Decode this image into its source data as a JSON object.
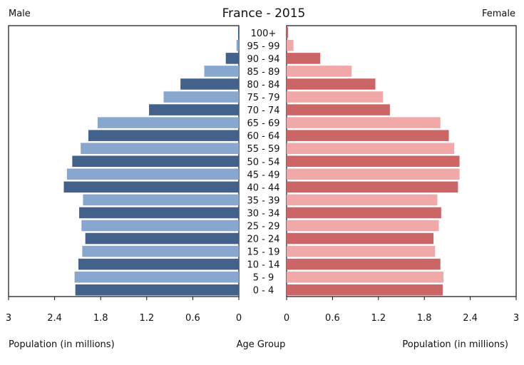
{
  "chart_data": {
    "type": "bar",
    "orientation": "horizontal",
    "title": "France - 2015",
    "left_label": "Male",
    "right_label": "Female",
    "xlabel_left": "Population (in millions)",
    "xlabel_center": "Age Group",
    "xlabel_right": "Population (in millions)",
    "xlim": [
      0,
      3
    ],
    "ticks_left": [
      "3",
      "2.4",
      "1.8",
      "1.2",
      "0.6",
      "0"
    ],
    "ticks_right": [
      "0",
      "0.6",
      "1.2",
      "1.8",
      "2.4",
      "3"
    ],
    "tick_values": [
      0,
      0.6,
      1.2,
      1.8,
      2.4,
      3
    ],
    "categories": [
      "100+",
      "95 - 99",
      "90 - 94",
      "85 - 89",
      "80 - 84",
      "75 - 79",
      "70 - 74",
      "65 - 69",
      "60 - 64",
      "55 - 59",
      "50 - 54",
      "45 - 49",
      "40 - 44",
      "35 - 39",
      "30 - 34",
      "25 - 29",
      "20 - 24",
      "15 - 19",
      "10 - 14",
      "5 - 9",
      "0 - 4"
    ],
    "series": [
      {
        "name": "Male",
        "values": [
          0.01,
          0.03,
          0.17,
          0.45,
          0.76,
          0.98,
          1.17,
          1.84,
          1.96,
          2.06,
          2.17,
          2.24,
          2.28,
          2.03,
          2.08,
          2.05,
          2.0,
          2.04,
          2.09,
          2.14,
          2.13
        ],
        "colors": [
          "#42628b",
          "#87a7cf"
        ]
      },
      {
        "name": "Female",
        "values": [
          0.02,
          0.09,
          0.44,
          0.85,
          1.16,
          1.26,
          1.35,
          2.01,
          2.12,
          2.19,
          2.26,
          2.26,
          2.24,
          1.97,
          2.02,
          1.99,
          1.92,
          1.94,
          2.01,
          2.05,
          2.04
        ],
        "colors": [
          "#cc6666",
          "#f0a8a8"
        ]
      }
    ],
    "grid": false
  }
}
